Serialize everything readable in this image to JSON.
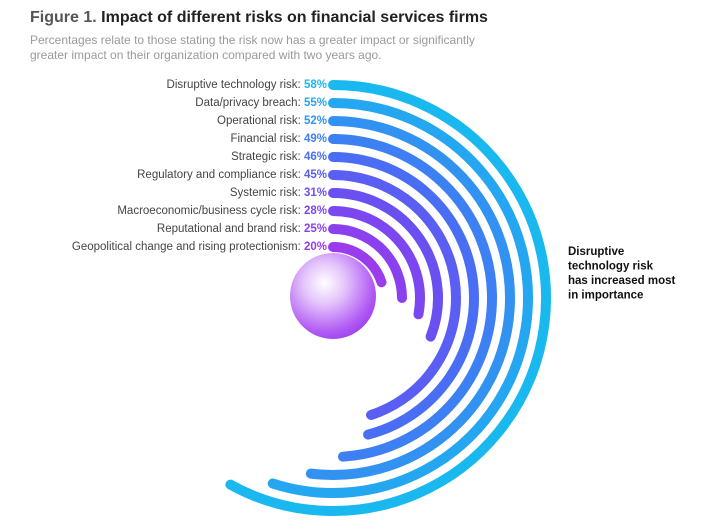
{
  "chart_data": {
    "type": "radial_bar",
    "title_prefix": "Figure 1.",
    "title": "Impact of different risks on financial services firms",
    "subtitle": [
      "Percentages relate to those stating the risk now has a greater impact or significantly",
      "greater impact on their organization compared with two years ago."
    ],
    "categories": [
      "Disruptive technology risk:",
      "Data/privacy breach:",
      "Operational risk:",
      "Financial risk:",
      "Strategic risk:",
      "Regulatory and compliance risk:",
      "Systemic risk:",
      "Macroeconomic/business cycle risk:",
      "Reputational and brand risk:",
      "Geopolitical change and rising protectionism:"
    ],
    "values": [
      58,
      55,
      52,
      49,
      46,
      45,
      31,
      28,
      25,
      20
    ],
    "value_labels": [
      "58%",
      "55%",
      "52%",
      "49%",
      "46%",
      "45%",
      "31%",
      "28%",
      "25%",
      "20%"
    ],
    "colors": [
      "#19b9f0",
      "#25a6f1",
      "#3192f2",
      "#3d80f3",
      "#4a6ef3",
      "#5a5ef2",
      "#6b50f1",
      "#7c47f0",
      "#8b40ef",
      "#9a3bee"
    ],
    "ylim": [
      0,
      100
    ],
    "annotation": [
      "Disruptive",
      "technology risk",
      "has increased most",
      "in importance"
    ]
  }
}
